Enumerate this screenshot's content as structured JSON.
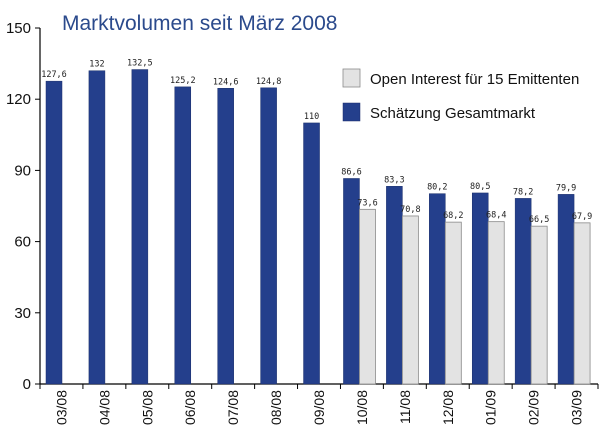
{
  "chart_data": {
    "type": "bar",
    "title": "Marktvolumen seit März 2008",
    "xlabel": "",
    "ylabel": "",
    "ylim": [
      0,
      150
    ],
    "yticks": [
      "0",
      "30",
      "60",
      "90",
      "120",
      "150"
    ],
    "categories": [
      "03/08",
      "04/08",
      "05/08",
      "06/08",
      "07/08",
      "08/08",
      "09/08",
      "10/08",
      "11/08",
      "12/08",
      "01/09",
      "02/09",
      "03/09"
    ],
    "series": [
      {
        "name": "Schätzung Gesamtmarkt",
        "color": "#243f8c",
        "values": [
          127.6,
          132,
          132.5,
          125.2,
          124.6,
          124.8,
          110,
          86.6,
          83.3,
          80.2,
          80.5,
          78.2,
          79.9
        ],
        "labels": [
          "127,6",
          "132",
          "132,5",
          "125,2",
          "124,6",
          "124,8",
          "110",
          "86,6",
          "83,3",
          "80,2",
          "80,5",
          "78,2",
          "79,9"
        ]
      },
      {
        "name": "Open Interest für 15 Emittenten",
        "color": "#e3e3e3",
        "values": [
          null,
          null,
          null,
          null,
          null,
          null,
          null,
          73.6,
          70.8,
          68.2,
          68.4,
          66.5,
          67.9
        ],
        "labels": [
          "",
          "",
          "",
          "",
          "",
          "",
          "",
          "73,6",
          "70,8",
          "68,2",
          "68,4",
          "66,5",
          "67,9"
        ]
      }
    ],
    "legend": {
      "position": "top-right",
      "entries": [
        "Open Interest für 15 Emittenten",
        "Schätzung Gesamtmarkt"
      ]
    },
    "grid": false
  }
}
